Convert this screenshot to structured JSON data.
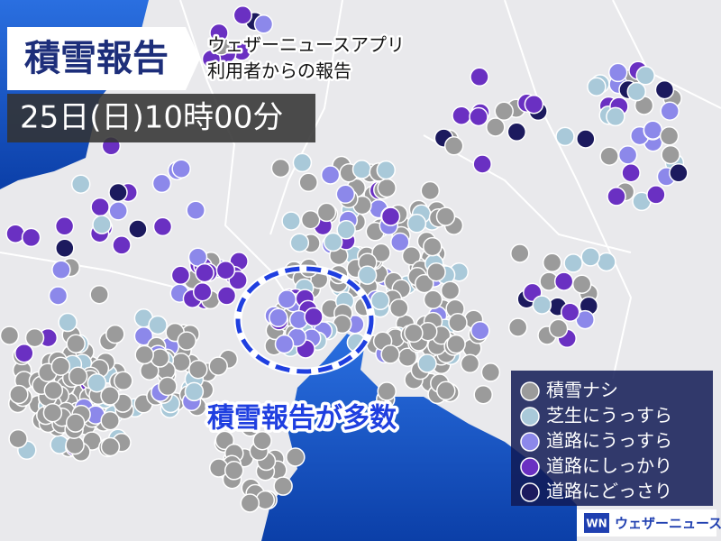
{
  "header": {
    "title": "積雪報告",
    "source_line1": "ウェザーニュースアプリ",
    "source_line2": "利用者からの報告",
    "datetime": "25日(日)10時00分"
  },
  "annotation": "積雪報告が多数",
  "legend": {
    "items": [
      {
        "label": "積雪ナシ",
        "color": "#9b9b9b"
      },
      {
        "label": "芝生にうっすら",
        "color": "#a9c9d9"
      },
      {
        "label": "道路にうっすら",
        "color": "#8c88ea"
      },
      {
        "label": "道路にしっかり",
        "color": "#6a30c2"
      },
      {
        "label": "道路にどっさり",
        "color": "#1c1a5e"
      }
    ]
  },
  "logo": {
    "mark": "WN",
    "text": "ウェザーニュース"
  }
}
